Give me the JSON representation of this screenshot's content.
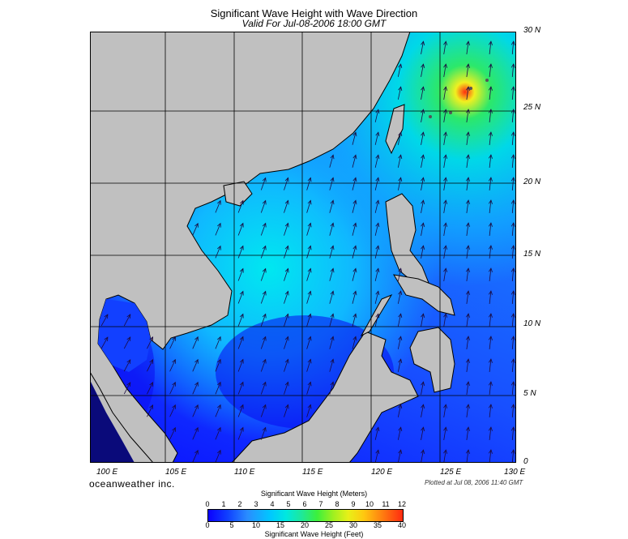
{
  "title": "Significant Wave Height with Wave Direction",
  "subtitle": "Valid For Jul-08-2006 18:00 GMT",
  "lat_labels": [
    "30 N",
    "25 N",
    "20 N",
    "15 N",
    "10 N",
    "5 N",
    "0"
  ],
  "lon_labels": [
    "100 E",
    "105 E",
    "110 E",
    "115 E",
    "120 E",
    "125 E",
    "130 E"
  ],
  "brand": "oceanweather inc.",
  "plotted": "Plotted at Jul 08, 2006 11:40 GMT",
  "scale": {
    "meters_title": "Significant Wave Height (Meters)",
    "meters_ticks": [
      "0",
      "1",
      "2",
      "3",
      "4",
      "5",
      "6",
      "7",
      "8",
      "9",
      "10",
      "11",
      "12"
    ],
    "feet_ticks": [
      "0",
      "5",
      "10",
      "15",
      "20",
      "25",
      "30",
      "35",
      "40"
    ],
    "feet_title": "Significant Wave Height (Feet)"
  },
  "colors": {
    "land": "#c0c0c0",
    "sea_low": "#0b00ff",
    "sea_mid": "#00c8ff",
    "sea_high": "#ff2a10",
    "arrow": "#1a0a40"
  },
  "arrow_direction": "from south-west toward north-east"
}
